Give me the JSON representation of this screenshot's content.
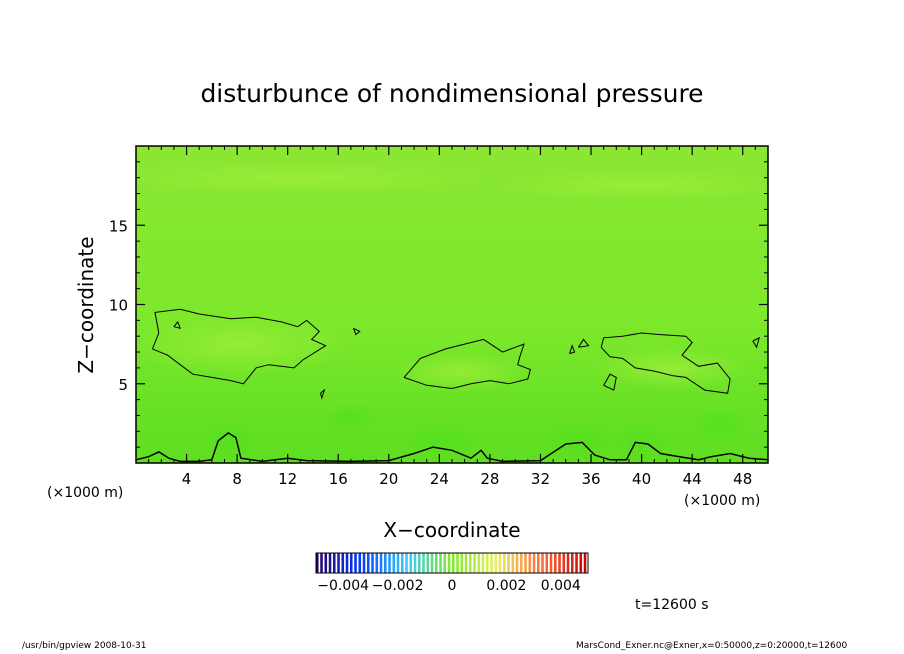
{
  "chart_data": {
    "type": "heatmap",
    "title": "disturbunce of nondimensional pressure",
    "xlabel": "X−coordinate",
    "ylabel": "Z−coordinate",
    "x_unit_left": "(×1000 m)",
    "x_unit_right": "(×1000 m)",
    "xlim": [
      0,
      50
    ],
    "ylim": [
      0,
      20
    ],
    "xticks": [
      4,
      8,
      12,
      16,
      20,
      24,
      28,
      32,
      36,
      40,
      44,
      48
    ],
    "yticks": [
      5,
      10,
      15
    ],
    "field_color": "#7fea2b",
    "colorbar": {
      "range": [
        -0.005,
        0.005
      ],
      "tick_values": [
        -0.004,
        -0.002,
        0,
        0.002,
        0.004
      ],
      "tick_labels": [
        "−0.004",
        "−0.002",
        "0",
        "0.002",
        "0.004"
      ],
      "colors": [
        "#2a0060",
        "#003cff",
        "#39c8ff",
        "#7fea2b",
        "#e8f060",
        "#ff6e3c",
        "#c00000"
      ]
    },
    "time_label": "t=12600 s",
    "contours": [
      {
        "name": "upper-left-region",
        "points": [
          [
            1.3,
            7.2
          ],
          [
            1.8,
            8.2
          ],
          [
            1.5,
            9.5
          ],
          [
            3.5,
            9.7
          ],
          [
            5.0,
            9.4
          ],
          [
            7.5,
            9.1
          ],
          [
            9.5,
            9.2
          ],
          [
            11.5,
            8.9
          ],
          [
            12.8,
            8.6
          ],
          [
            13.5,
            9.0
          ],
          [
            14.5,
            8.3
          ],
          [
            13.9,
            7.8
          ],
          [
            15.0,
            7.4
          ],
          [
            13.2,
            6.5
          ],
          [
            12.5,
            6.0
          ],
          [
            10.5,
            6.2
          ],
          [
            9.5,
            6.0
          ],
          [
            8.5,
            5.0
          ],
          [
            7.5,
            5.2
          ],
          [
            6.0,
            5.4
          ],
          [
            4.5,
            5.6
          ],
          [
            3.5,
            6.2
          ],
          [
            2.5,
            6.8
          ],
          [
            1.3,
            7.2
          ]
        ]
      },
      {
        "name": "middle-region",
        "points": [
          [
            21.2,
            5.4
          ],
          [
            22.5,
            6.6
          ],
          [
            24.5,
            7.2
          ],
          [
            26.0,
            7.5
          ],
          [
            27.5,
            7.8
          ],
          [
            29.0,
            7.0
          ],
          [
            30.0,
            7.3
          ],
          [
            30.7,
            7.5
          ],
          [
            30.4,
            6.8
          ],
          [
            30.2,
            6.2
          ],
          [
            31.2,
            5.9
          ],
          [
            31.0,
            5.3
          ],
          [
            29.5,
            5.0
          ],
          [
            28.0,
            5.2
          ],
          [
            26.5,
            5.0
          ],
          [
            25.0,
            4.7
          ],
          [
            23.0,
            4.9
          ],
          [
            21.2,
            5.4
          ]
        ]
      },
      {
        "name": "right-region",
        "points": [
          [
            36.8,
            7.3
          ],
          [
            37.0,
            7.9
          ],
          [
            38.5,
            8.0
          ],
          [
            40.0,
            8.2
          ],
          [
            41.5,
            8.1
          ],
          [
            43.5,
            8.0
          ],
          [
            44.0,
            7.6
          ],
          [
            43.2,
            6.8
          ],
          [
            44.5,
            6.1
          ],
          [
            46.0,
            6.3
          ],
          [
            47.0,
            5.3
          ],
          [
            46.8,
            4.4
          ],
          [
            45.0,
            4.6
          ],
          [
            43.5,
            5.4
          ],
          [
            42.5,
            5.5
          ],
          [
            41.0,
            5.8
          ],
          [
            39.5,
            6.0
          ],
          [
            38.5,
            6.6
          ],
          [
            37.5,
            6.7
          ],
          [
            36.8,
            7.3
          ]
        ]
      },
      {
        "name": "right-small-loop",
        "points": [
          [
            37.0,
            4.9
          ],
          [
            37.5,
            5.6
          ],
          [
            38.0,
            5.4
          ],
          [
            37.8,
            4.6
          ],
          [
            37.0,
            4.9
          ]
        ]
      },
      {
        "name": "right-edge-loop",
        "points": [
          [
            48.8,
            7.7
          ],
          [
            49.3,
            7.9
          ],
          [
            49.1,
            7.3
          ],
          [
            48.8,
            7.7
          ]
        ]
      },
      {
        "name": "small-loop-a",
        "points": [
          [
            34.3,
            6.9
          ],
          [
            34.5,
            7.4
          ],
          [
            34.7,
            7.0
          ],
          [
            34.3,
            6.9
          ]
        ]
      },
      {
        "name": "small-loop-b",
        "points": [
          [
            35.0,
            7.3
          ],
          [
            35.4,
            7.8
          ],
          [
            35.8,
            7.4
          ],
          [
            35.0,
            7.3
          ]
        ]
      },
      {
        "name": "small-loop-c",
        "points": [
          [
            17.2,
            8.5
          ],
          [
            17.7,
            8.3
          ],
          [
            17.4,
            8.1
          ],
          [
            17.2,
            8.5
          ]
        ]
      },
      {
        "name": "small-loop-d",
        "points": [
          [
            14.6,
            4.4
          ],
          [
            14.9,
            4.6
          ],
          [
            14.7,
            4.1
          ],
          [
            14.6,
            4.4
          ]
        ]
      },
      {
        "name": "small-loop-e",
        "points": [
          [
            3.0,
            8.6
          ],
          [
            3.3,
            8.9
          ],
          [
            3.5,
            8.5
          ],
          [
            3.0,
            8.6
          ]
        ]
      },
      {
        "name": "surface-contour",
        "points": [
          [
            0,
            0.2
          ],
          [
            1.0,
            0.4
          ],
          [
            1.8,
            0.7
          ],
          [
            2.6,
            0.3
          ],
          [
            3.5,
            0.1
          ],
          [
            5.0,
            0.1
          ],
          [
            6.0,
            0.2
          ],
          [
            6.5,
            1.4
          ],
          [
            7.3,
            1.9
          ],
          [
            7.9,
            1.6
          ],
          [
            8.3,
            0.3
          ],
          [
            10.0,
            0.1
          ],
          [
            12.0,
            0.3
          ],
          [
            13.5,
            0.15
          ],
          [
            17.0,
            0.1
          ],
          [
            20.0,
            0.15
          ],
          [
            22.0,
            0.6
          ],
          [
            23.5,
            1.0
          ],
          [
            25.0,
            0.8
          ],
          [
            26.5,
            0.3
          ],
          [
            27.3,
            0.8
          ],
          [
            27.8,
            0.3
          ],
          [
            29.0,
            0.1
          ],
          [
            32.0,
            0.15
          ],
          [
            34.0,
            1.2
          ],
          [
            35.3,
            1.3
          ],
          [
            36.3,
            0.5
          ],
          [
            37.5,
            0.2
          ],
          [
            38.8,
            0.2
          ],
          [
            39.5,
            1.3
          ],
          [
            40.5,
            1.2
          ],
          [
            41.5,
            0.6
          ],
          [
            43.0,
            0.4
          ],
          [
            44.5,
            0.2
          ],
          [
            45.5,
            0.4
          ],
          [
            47.0,
            0.6
          ],
          [
            48.5,
            0.3
          ],
          [
            50,
            0.2
          ]
        ]
      }
    ]
  },
  "footer": {
    "left": "/usr/bin/gpview   2008-10-31",
    "right": "MarsCond_Exner.nc@Exner,x=0:50000,z=0:20000,t=12600"
  }
}
